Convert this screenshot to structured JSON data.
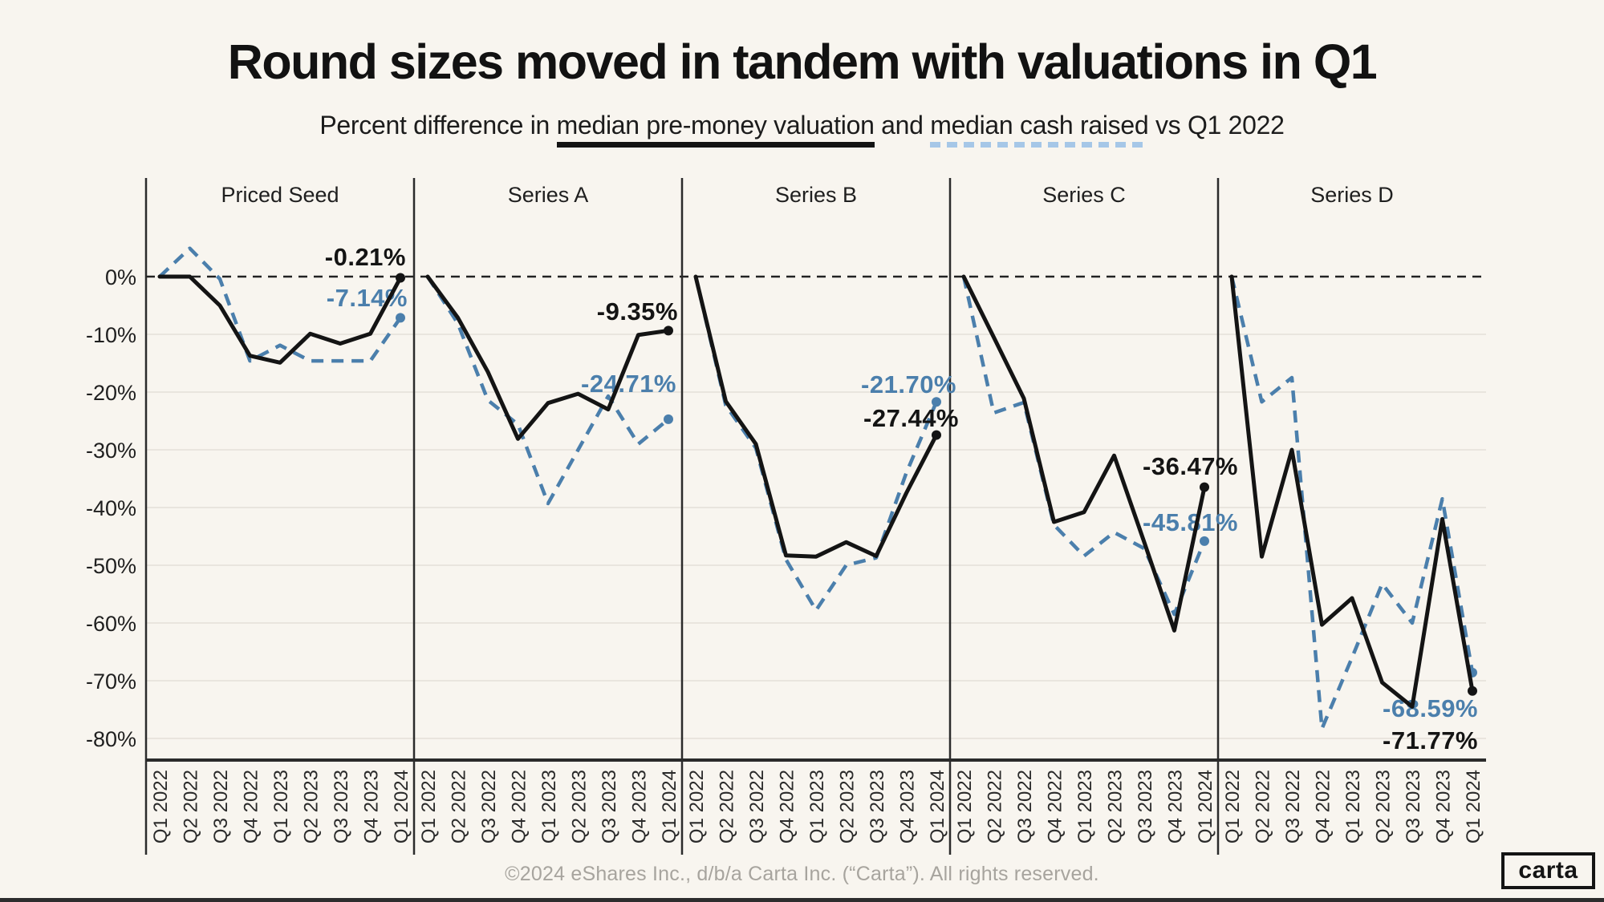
{
  "title": "Round sizes moved in tandem with valuations in Q1",
  "subtitle": {
    "prefix": "Percent difference in ",
    "underline_solid": "median pre-money valuation",
    "middle": " and ",
    "underline_dashed": "median cash raised",
    "suffix": " vs Q1 2022"
  },
  "footer": "©2024 eShares Inc., d/b/a Carta Inc. (“Carta”). All rights reserved.",
  "logo_text": "carta",
  "colors": {
    "background": "#f8f5ef",
    "black_series": "#141414",
    "blue_series": "#4b7fac",
    "blue_underline": "#a6c7e7",
    "gridline": "#e4e0d9",
    "axis": "#2b2b2b",
    "footer_gray": "#a7a49e"
  },
  "chart_data": {
    "type": "line",
    "title": "Round sizes moved in tandem with valuations in Q1",
    "subtitle": "Percent difference in median pre-money valuation and median cash raised vs Q1 2022",
    "baseline_quarter": "Q1 2022",
    "grid": true,
    "unit": "%",
    "ylim": [
      -85,
      8
    ],
    "y_ticks": [
      0,
      -10,
      -20,
      -30,
      -40,
      -50,
      -60,
      -70,
      -80
    ],
    "y_tick_labels": [
      "0%",
      "-10%",
      "-20%",
      "-30%",
      "-40%",
      "-50%",
      "-60%",
      "-70%",
      "-80%"
    ],
    "categories": [
      "Q1 2022",
      "Q2 2022",
      "Q3 2022",
      "Q4 2022",
      "Q1 2023",
      "Q2 2023",
      "Q3 2023",
      "Q4 2023",
      "Q1 2024"
    ],
    "series_legend": [
      {
        "name": "median pre-money valuation",
        "style": "solid",
        "color": "#141414"
      },
      {
        "name": "median cash raised",
        "style": "dashed",
        "color": "#4b7fac"
      }
    ],
    "panels": [
      {
        "title": "Priced Seed",
        "series": [
          {
            "name": "median pre-money valuation",
            "values": [
              0,
              0,
              -5.0,
              -13.7,
              -14.9,
              -9.9,
              -11.6,
              -9.9,
              -0.21
            ],
            "end_label": "-0.21%"
          },
          {
            "name": "median cash raised",
            "values": [
              0,
              4.9,
              -0.4,
              -14.6,
              -11.9,
              -14.6,
              -14.6,
              -14.6,
              -7.14
            ],
            "end_label": "-7.14%"
          }
        ]
      },
      {
        "title": "Series A",
        "series": [
          {
            "name": "median pre-money valuation",
            "values": [
              0,
              -7.1,
              -16.5,
              -28.1,
              -21.9,
              -20.3,
              -23.0,
              -10.1,
              -9.35
            ],
            "end_label": "-9.35%"
          },
          {
            "name": "median cash raised",
            "values": [
              0,
              -8.1,
              -21.4,
              -25.6,
              -39.3,
              -30.0,
              -20.7,
              -29.0,
              -24.71
            ],
            "end_label": "-24.71%"
          }
        ]
      },
      {
        "title": "Series B",
        "series": [
          {
            "name": "median pre-money valuation",
            "values": [
              0,
              -21.6,
              -29.0,
              -48.3,
              -48.5,
              -46.0,
              -48.4,
              -37.5,
              -27.44
            ],
            "end_label": "-27.44%"
          },
          {
            "name": "median cash raised",
            "values": [
              0,
              -22.3,
              -29.7,
              -49.0,
              -57.8,
              -50.0,
              -48.7,
              -34.0,
              -21.7
            ],
            "end_label": "-21.70%"
          }
        ]
      },
      {
        "title": "Series C",
        "series": [
          {
            "name": "median pre-money valuation",
            "values": [
              0,
              -10.5,
              -21.1,
              -42.5,
              -40.8,
              -31.0,
              -46.0,
              -61.3,
              -36.47
            ],
            "end_label": "-36.47%"
          },
          {
            "name": "median cash raised",
            "values": [
              0,
              -23.6,
              -21.8,
              -43.0,
              -48.4,
              -44.3,
              -47.1,
              -58.5,
              -45.81
            ],
            "end_label": "-45.81%"
          }
        ]
      },
      {
        "title": "Series D",
        "series": [
          {
            "name": "median pre-money valuation",
            "values": [
              0,
              -48.5,
              -30.0,
              -60.3,
              -55.7,
              -70.3,
              -74.5,
              -42.0,
              -71.77
            ],
            "end_label": "-71.77%"
          },
          {
            "name": "median cash raised",
            "values": [
              0,
              -21.7,
              -17.5,
              -78.3,
              -66.0,
              -53.2,
              -60.0,
              -38.5,
              -68.59
            ],
            "end_label": "-68.59%"
          }
        ]
      }
    ]
  }
}
